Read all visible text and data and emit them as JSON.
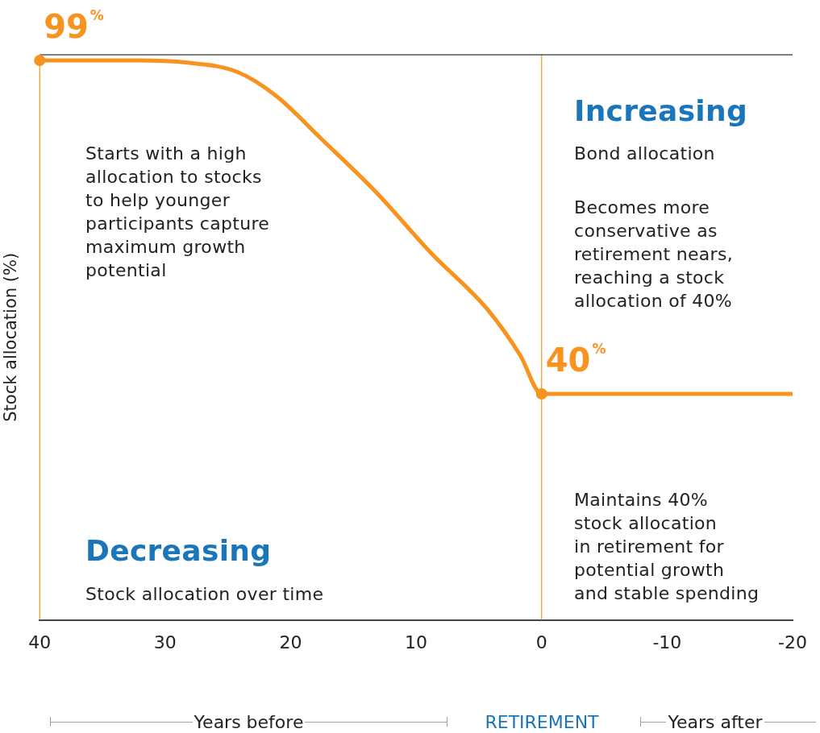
{
  "chart_data": {
    "type": "line",
    "ylabel": "Stock allocation (%)",
    "x": [
      40,
      32.2,
      28.2,
      24.3,
      21.2,
      17.5,
      13.2,
      8.8,
      4.3,
      1.7,
      0,
      -20
    ],
    "series": [
      {
        "color": "#f7931e",
        "values": [
          99,
          99,
          98.6,
          97,
          92.8,
          85,
          75.7,
          64.9,
          54.9,
          46.8,
          40,
          40
        ],
        "value_labels": [
          "99%",
          null,
          null,
          null,
          null,
          null,
          null,
          null,
          null,
          null,
          "40%",
          null
        ]
      }
    ],
    "xlim": [
      40,
      -20
    ],
    "xticks": [
      40,
      30,
      20,
      10,
      0,
      -10,
      -20
    ],
    "ylim": [
      0,
      100
    ],
    "ref_lines": [
      {
        "axis": "x",
        "value": 40,
        "color": "#f7931e"
      },
      {
        "axis": "x",
        "value": 0,
        "color": "#f7931e"
      },
      {
        "axis": "y",
        "value": 100,
        "color": "#555555"
      }
    ],
    "grid": false,
    "legend": false,
    "tick_labels": "x",
    "line_style": "solid",
    "annotations": [
      "Years before",
      "RETIREMENT",
      "Years after",
      "Increasing",
      "Bond allocation",
      "Becomes more\nconservative as\nretirement nears,\nreaching a stock\nallocation of 40%",
      "Starts with a high\nallocation to stocks\nto help younger\nparticipants capture\nmaximum growth\npotential",
      "Decreasing",
      "Stock allocation over time",
      "Maintains 40%\nstock allocation\nin retirement for\npotential growth\nand stable spending"
    ]
  }
}
